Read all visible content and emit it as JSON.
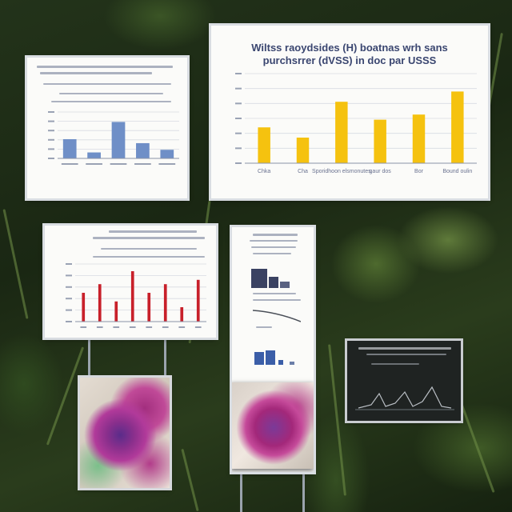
{
  "scene": {
    "description_colors": {
      "foliage": "#2a3c1c",
      "board": "#fbfbf9",
      "gold_bar": "#f5c20f",
      "blue_bar": "#6f8fc7",
      "red_bar": "#c8202a"
    }
  },
  "big_chart": {
    "title_line1": "Wiltss raoydsides (H) boatnas wrh sans",
    "title_line2": "purchsrrer (dVSS) in doc par USSS"
  },
  "chart_data": [
    {
      "type": "bar",
      "categories": [
        "",
        "",
        "",
        "",
        ""
      ],
      "values": [
        29,
        9,
        55,
        23,
        13
      ],
      "ylim": [
        0,
        70
      ],
      "color": "#6f8fc7"
    },
    {
      "type": "bar",
      "categories": [
        "Chka",
        "Cha",
        "Sporidhoon elsmonutes",
        "gaur dos",
        "Bor",
        "Bound oulin"
      ],
      "values": [
        14,
        10,
        24,
        17,
        19,
        28
      ],
      "ylim": [
        0,
        35
      ],
      "color": "#f5c20f"
    },
    {
      "type": "bar",
      "categories": [
        "",
        "",
        "",
        "",
        "",
        "",
        "",
        ""
      ],
      "values": [
        40,
        52,
        28,
        70,
        40,
        52,
        20,
        58
      ],
      "ylim": [
        0,
        80
      ],
      "color": "#c8202a"
    }
  ]
}
